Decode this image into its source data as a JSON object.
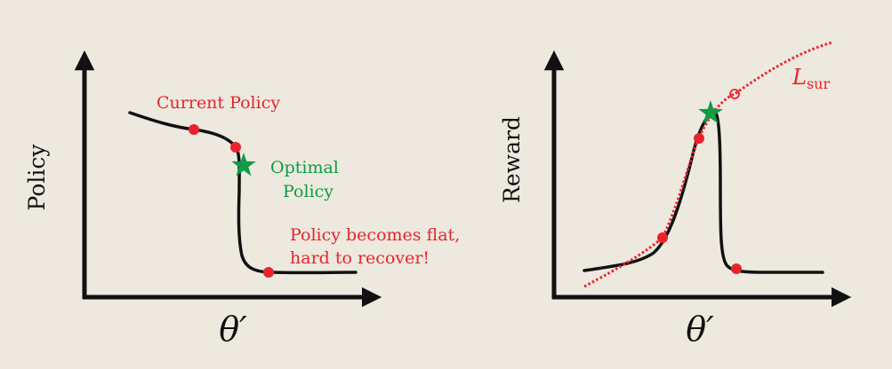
{
  "left_panel": {
    "y_axis_label": "Policy",
    "x_axis_label": "θ′",
    "annotations": {
      "current_policy": "Current Policy",
      "optimal_line1": "Optimal",
      "optimal_line2": "Policy",
      "flat_line1": "Policy becomes flat,",
      "flat_line2": "hard to recover!"
    }
  },
  "right_panel": {
    "y_axis_label": "Reward",
    "x_axis_label": "θ′",
    "surrogate_label": "L",
    "surrogate_subscript": "sur"
  },
  "colors": {
    "background": "#ede9df",
    "curve": "#111111",
    "highlight": "#e8242a",
    "optimum": "#0d9b45"
  }
}
